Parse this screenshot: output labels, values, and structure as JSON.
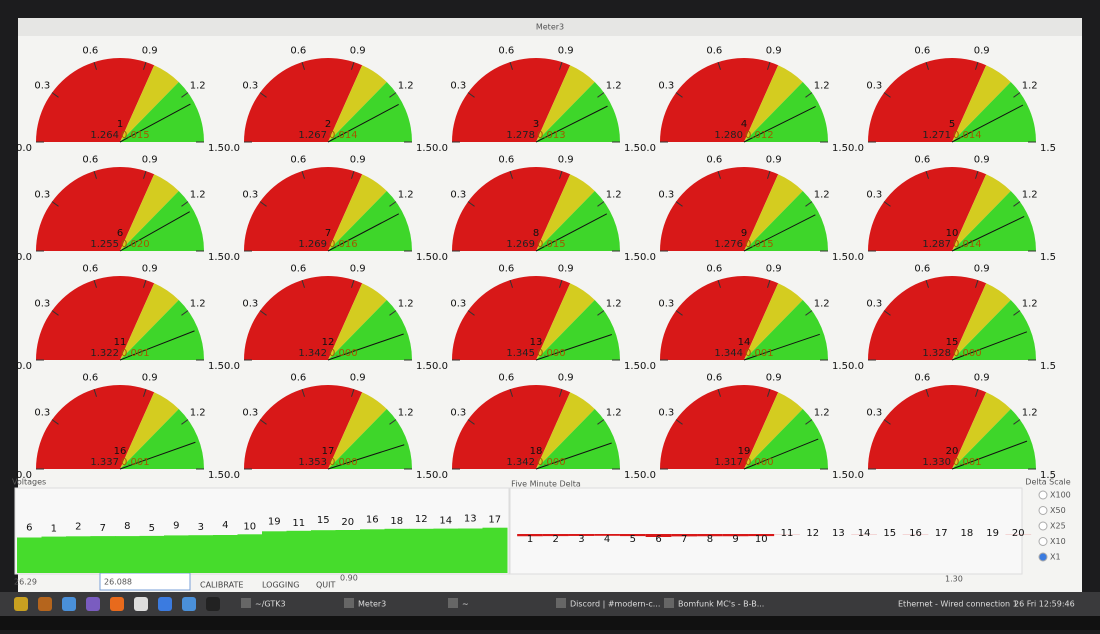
{
  "window": {
    "title": "Meter3"
  },
  "gauge_scale": {
    "ticks": [
      {
        "value": 0,
        "label": "0.0"
      },
      {
        "value": 0.3,
        "label": "0.3"
      },
      {
        "value": 0.6,
        "label": "0.6"
      },
      {
        "value": 0.9,
        "label": "0.9"
      },
      {
        "value": 1.2,
        "label": "1.2"
      },
      {
        "value": 1.5,
        "label": "1.5"
      }
    ],
    "zones": [
      {
        "from": 0,
        "to": 0.95,
        "color": "#d81818"
      },
      {
        "from": 0.95,
        "to": 1.12,
        "color": "#d4cc20"
      },
      {
        "from": 1.12,
        "to": 1.5,
        "color": "#3ed62a"
      }
    ]
  },
  "gauges": [
    {
      "id": "1",
      "voltage": "1.264",
      "delta": "0.015"
    },
    {
      "id": "2",
      "voltage": "1.267",
      "delta": "0.014"
    },
    {
      "id": "3",
      "voltage": "1.278",
      "delta": "0.013"
    },
    {
      "id": "4",
      "voltage": "1.280",
      "delta": "0.012"
    },
    {
      "id": "5",
      "voltage": "1.271",
      "delta": "0.014"
    },
    {
      "id": "6",
      "voltage": "1.255",
      "delta": "0.020"
    },
    {
      "id": "7",
      "voltage": "1.269",
      "delta": "0.016"
    },
    {
      "id": "8",
      "voltage": "1.269",
      "delta": "0.015"
    },
    {
      "id": "9",
      "voltage": "1.276",
      "delta": "0.015"
    },
    {
      "id": "10",
      "voltage": "1.287",
      "delta": "0.014"
    },
    {
      "id": "11",
      "voltage": "1.322",
      "delta": "0.001"
    },
    {
      "id": "12",
      "voltage": "1.342",
      "delta": "0.000"
    },
    {
      "id": "13",
      "voltage": "1.345",
      "delta": "0.000"
    },
    {
      "id": "14",
      "voltage": "1.344",
      "delta": "0.001"
    },
    {
      "id": "15",
      "voltage": "1.328",
      "delta": "0.000"
    },
    {
      "id": "16",
      "voltage": "1.337",
      "delta": "0.001"
    },
    {
      "id": "17",
      "voltage": "1.353",
      "delta": "0.000"
    },
    {
      "id": "18",
      "voltage": "1.342",
      "delta": "0.000"
    },
    {
      "id": "19",
      "voltage": "1.317",
      "delta": "0.000"
    },
    {
      "id": "20",
      "voltage": "1.330",
      "delta": "0.001"
    }
  ],
  "voltages_panel": {
    "title": "Voltages",
    "order": [
      "6",
      "1",
      "2",
      "7",
      "8",
      "5",
      "9",
      "3",
      "4",
      "10",
      "19",
      "11",
      "15",
      "20",
      "16",
      "18",
      "12",
      "14",
      "13",
      "17"
    ],
    "scale_min": "0.90",
    "scale_max": "1.30",
    "color": "#46dc2c"
  },
  "delta_panel": {
    "title": "Five Minute Delta",
    "color": "#d81818"
  },
  "delta_scale": {
    "title": "Delta Scale",
    "options": [
      "X100",
      "X50",
      "X25",
      "X10",
      "X1"
    ],
    "selected": 4
  },
  "controls": {
    "readout": "26.29",
    "input": "26.088",
    "buttons": [
      "CALIBRATE",
      "LOGGING",
      "QUIT"
    ]
  },
  "taskbar": {
    "items": [
      "~/GTK3",
      "Meter3",
      "~",
      "Discord | #modern-c...",
      "Bomfunk MC's - B-B..."
    ],
    "network": "Ethernet - Wired connection 1",
    "clock": "26 Fri 12:59:46"
  }
}
